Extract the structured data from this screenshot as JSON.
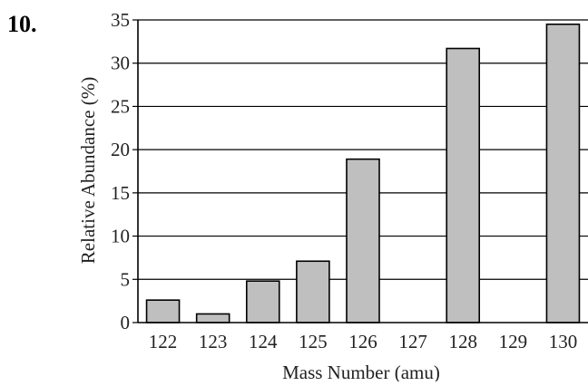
{
  "question": {
    "number": "10."
  },
  "chart_data": {
    "type": "bar",
    "title": "",
    "xlabel": "Mass Number (amu)",
    "ylabel": "Relative Abundance (%)",
    "categories": [
      "122",
      "123",
      "124",
      "125",
      "126",
      "127",
      "128",
      "129",
      "130"
    ],
    "values": [
      2.6,
      1.0,
      4.8,
      7.1,
      18.9,
      0,
      31.7,
      0,
      34.5
    ],
    "ylim": [
      0,
      35
    ],
    "yticks": [
      0,
      5,
      10,
      15,
      20,
      25,
      30,
      35
    ],
    "grid": true,
    "legend": "none",
    "colors": {
      "bar_fill": "#bfbfbf",
      "bar_stroke": "#000000",
      "grid": "#000000",
      "axis": "#000000"
    }
  }
}
